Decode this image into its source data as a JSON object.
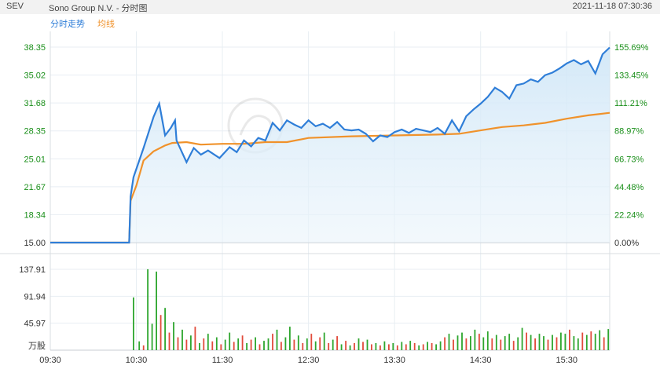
{
  "header": {
    "ticker": "SEV",
    "title": "Sono Group N.V. - 分时图",
    "timestamp": "2021-11-18 07:30:36"
  },
  "legend": {
    "price_label": "分时走势",
    "avg_label": "均线"
  },
  "colors": {
    "price_line": "#2f7ed8",
    "avg_line": "#f0922b",
    "up_bar": "#2ea62e",
    "down_bar": "#e14b3b",
    "left_axis": "#1a8f1a",
    "right_axis": "#1a8f1a"
  },
  "chart_data": {
    "type": "line",
    "price_axis": {
      "ylim": [
        15.0,
        38.35
      ],
      "ticks": [
        "38.35",
        "35.02",
        "31.68",
        "28.35",
        "25.01",
        "21.67",
        "18.34",
        "15.00"
      ]
    },
    "percent_axis": {
      "ticks": [
        "155.69%",
        "133.45%",
        "111.21%",
        "88.97%",
        "66.73%",
        "44.48%",
        "22.24%",
        "0.00%"
      ]
    },
    "volume_axis": {
      "ylim": [
        0,
        137.91
      ],
      "ticks": [
        "137.91",
        "91.94",
        "45.97"
      ],
      "unit": "万股"
    },
    "time_axis": {
      "xlim": [
        "09:30",
        "16:00"
      ],
      "ticks": [
        "09:30",
        "10:30",
        "11:30",
        "12:30",
        "13:30",
        "14:30",
        "15:30"
      ]
    },
    "price_series": {
      "name": "分时走势",
      "x": [
        "09:30",
        "10:25",
        "10:26",
        "10:28",
        "10:35",
        "10:42",
        "10:46",
        "10:50",
        "10:54",
        "10:57",
        "10:58",
        "11:05",
        "11:10",
        "11:15",
        "11:20",
        "11:28",
        "11:35",
        "11:40",
        "11:45",
        "11:50",
        "11:55",
        "12:00",
        "12:05",
        "12:10",
        "12:15",
        "12:20",
        "12:25",
        "12:30",
        "12:35",
        "12:40",
        "12:45",
        "12:50",
        "12:55",
        "13:00",
        "13:05",
        "13:10",
        "13:15",
        "13:20",
        "13:25",
        "13:30",
        "13:35",
        "13:40",
        "13:45",
        "13:50",
        "13:55",
        "14:00",
        "14:05",
        "14:10",
        "14:15",
        "14:20",
        "14:25",
        "14:30",
        "14:35",
        "14:40",
        "14:45",
        "14:50",
        "14:55",
        "15:00",
        "15:05",
        "15:10",
        "15:15",
        "15:20",
        "15:25",
        "15:30",
        "15:35",
        "15:40",
        "15:45",
        "15:50",
        "15:55",
        "16:00"
      ],
      "y": [
        15.0,
        15.0,
        20.5,
        22.8,
        26.3,
        30.0,
        31.6,
        27.8,
        28.7,
        29.6,
        27.2,
        24.6,
        26.3,
        25.5,
        26.0,
        25.1,
        26.4,
        25.8,
        27.2,
        26.5,
        27.5,
        27.2,
        29.3,
        28.4,
        29.6,
        29.1,
        28.7,
        29.6,
        28.9,
        29.2,
        28.7,
        29.4,
        28.5,
        28.4,
        28.5,
        28.0,
        27.1,
        27.8,
        27.6,
        28.2,
        28.5,
        28.1,
        28.6,
        28.4,
        28.2,
        28.7,
        28.0,
        29.6,
        28.3,
        30.1,
        30.9,
        31.6,
        32.4,
        33.5,
        33.0,
        32.2,
        33.8,
        34.0,
        34.5,
        34.2,
        35.0,
        35.3,
        35.8,
        36.4,
        36.8,
        36.3,
        36.7,
        35.2,
        37.5,
        38.3
      ]
    },
    "avg_series": {
      "name": "均线",
      "x": [
        "09:30",
        "10:25",
        "10:26",
        "10:30",
        "10:35",
        "10:42",
        "10:50",
        "10:55",
        "11:05",
        "11:15",
        "11:30",
        "11:45",
        "12:00",
        "12:15",
        "12:30",
        "13:00",
        "13:30",
        "14:00",
        "14:15",
        "14:30",
        "14:45",
        "15:00",
        "15:15",
        "15:30",
        "15:45",
        "16:00"
      ],
      "y": [
        15.0,
        15.0,
        20.0,
        21.8,
        24.8,
        25.9,
        26.6,
        26.9,
        27.0,
        26.7,
        26.8,
        26.8,
        27.0,
        27.0,
        27.5,
        27.7,
        27.8,
        27.9,
        28.0,
        28.4,
        28.8,
        29.0,
        29.3,
        29.8,
        30.2,
        30.5
      ]
    },
    "volume_series": {
      "name": "volume",
      "x": [
        "10:28",
        "10:32",
        "10:35",
        "10:38",
        "10:41",
        "10:44",
        "10:47",
        "10:50",
        "10:53",
        "10:56",
        "10:59",
        "11:02",
        "11:05",
        "11:08",
        "11:11",
        "11:14",
        "11:17",
        "11:20",
        "11:23",
        "11:26",
        "11:29",
        "11:32",
        "11:35",
        "11:38",
        "11:41",
        "11:44",
        "11:47",
        "11:50",
        "11:53",
        "11:56",
        "11:59",
        "12:02",
        "12:05",
        "12:08",
        "12:11",
        "12:14",
        "12:17",
        "12:20",
        "12:23",
        "12:26",
        "12:29",
        "12:32",
        "12:35",
        "12:38",
        "12:41",
        "12:44",
        "12:47",
        "12:50",
        "12:53",
        "12:56",
        "12:59",
        "13:02",
        "13:05",
        "13:08",
        "13:11",
        "13:14",
        "13:17",
        "13:20",
        "13:23",
        "13:26",
        "13:29",
        "13:32",
        "13:35",
        "13:38",
        "13:41",
        "13:44",
        "13:47",
        "13:50",
        "13:53",
        "13:56",
        "13:59",
        "14:02",
        "14:05",
        "14:08",
        "14:11",
        "14:14",
        "14:17",
        "14:20",
        "14:23",
        "14:26",
        "14:29",
        "14:32",
        "14:35",
        "14:38",
        "14:41",
        "14:44",
        "14:47",
        "14:50",
        "14:53",
        "14:56",
        "14:59",
        "15:02",
        "15:05",
        "15:08",
        "15:11",
        "15:14",
        "15:17",
        "15:20",
        "15:23",
        "15:26",
        "15:29",
        "15:32",
        "15:35",
        "15:38",
        "15:41",
        "15:44",
        "15:47",
        "15:50",
        "15:53",
        "15:56",
        "15:59"
      ],
      "y": [
        90,
        15,
        8,
        138,
        45,
        134,
        60,
        72,
        30,
        48,
        22,
        35,
        18,
        25,
        40,
        12,
        20,
        28,
        15,
        22,
        10,
        18,
        30,
        14,
        20,
        25,
        12,
        18,
        22,
        10,
        16,
        20,
        28,
        35,
        14,
        22,
        40,
        18,
        25,
        12,
        20,
        28,
        15,
        22,
        30,
        12,
        18,
        24,
        10,
        16,
        8,
        12,
        20,
        14,
        18,
        10,
        12,
        8,
        15,
        10,
        12,
        8,
        14,
        10,
        16,
        12,
        8,
        10,
        14,
        12,
        10,
        15,
        22,
        28,
        18,
        25,
        30,
        20,
        24,
        35,
        28,
        22,
        32,
        20,
        26,
        18,
        24,
        28,
        16,
        22,
        38,
        30,
        26,
        20,
        28,
        24,
        18,
        26,
        22,
        30,
        28,
        35,
        24,
        20,
        30,
        26,
        32,
        28,
        34,
        22,
        36
      ],
      "up": [
        true,
        true,
        false,
        true,
        true,
        true,
        false,
        true,
        false,
        true,
        false,
        true,
        false,
        true,
        false,
        true,
        false,
        true,
        false,
        true,
        false,
        true,
        true,
        false,
        true,
        false,
        true,
        false,
        true,
        false,
        true,
        true,
        false,
        true,
        false,
        true,
        true,
        false,
        true,
        false,
        true,
        false,
        true,
        false,
        true,
        false,
        true,
        false,
        true,
        false,
        true,
        false,
        true,
        false,
        true,
        false,
        true,
        false,
        true,
        false,
        true,
        false,
        true,
        false,
        true,
        false,
        true,
        false,
        true,
        false,
        true,
        true,
        false,
        true,
        false,
        true,
        true,
        false,
        true,
        true,
        false,
        true,
        true,
        false,
        true,
        false,
        true,
        true,
        false,
        true,
        true,
        false,
        true,
        false,
        true,
        true,
        false,
        true,
        false,
        true,
        true,
        false,
        true,
        true,
        false,
        true,
        false,
        true,
        true,
        false,
        true
      ]
    }
  }
}
